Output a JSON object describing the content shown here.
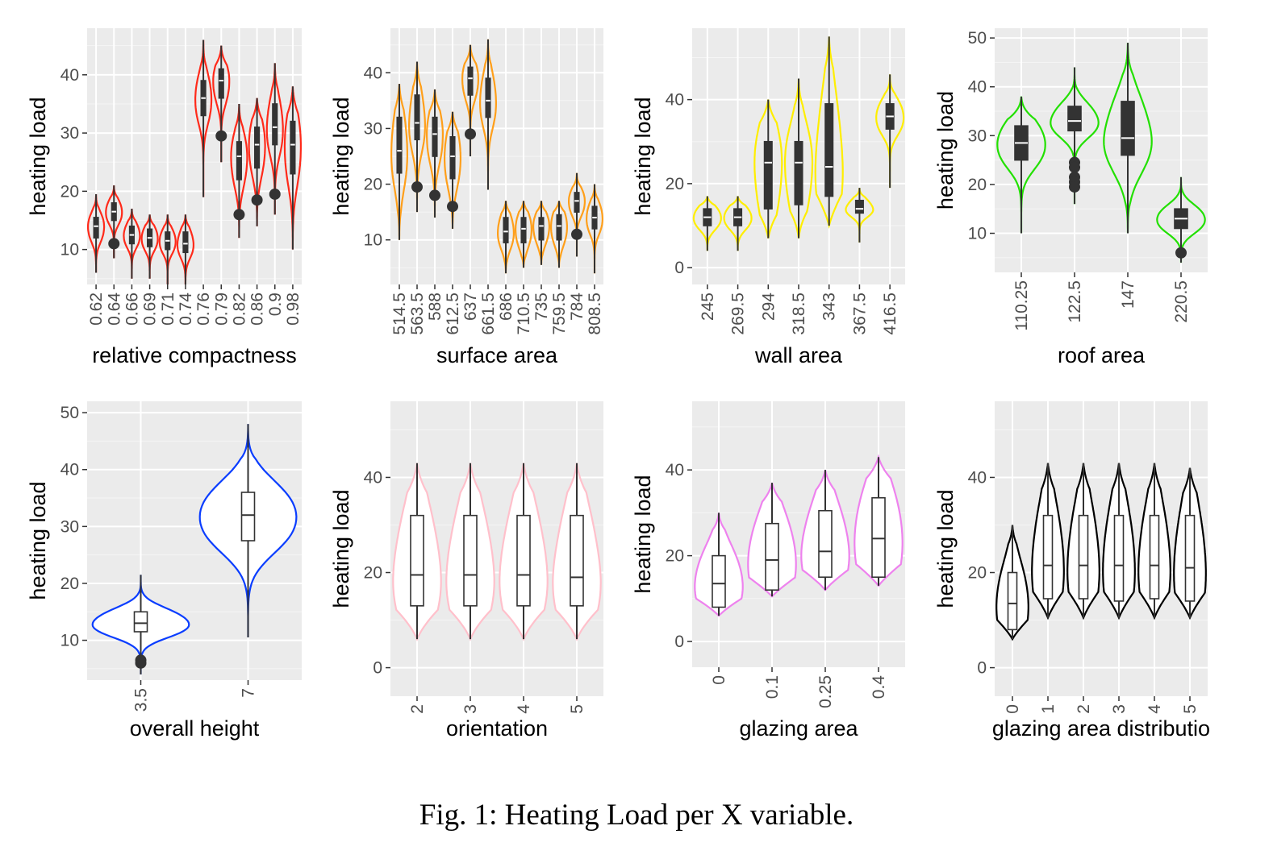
{
  "caption": "Fig. 1: Heating Load per X variable.",
  "chart_data": [
    {
      "type": "violin",
      "xlabel": "relative compactness",
      "ylabel": "heating load",
      "color": "#ff2a1a",
      "yticks": [
        10,
        20,
        30,
        40
      ],
      "ylim": [
        4,
        48
      ],
      "categories": [
        "0.62",
        "0.64",
        "0.66",
        "0.69",
        "0.71",
        "0.74",
        "0.76",
        "0.79",
        "0.82",
        "0.86",
        "0.9",
        "0.98"
      ],
      "groups": [
        {
          "min": 6,
          "q1": 12,
          "median": 14,
          "q3": 15.5,
          "max": 19.5,
          "outliers": []
        },
        {
          "min": 8.5,
          "q1": 15,
          "median": 16.5,
          "q3": 18,
          "max": 21,
          "outliers": [
            11
          ]
        },
        {
          "min": 5,
          "q1": 11,
          "median": 12.5,
          "q3": 14,
          "max": 17,
          "outliers": []
        },
        {
          "min": 5,
          "q1": 10.5,
          "median": 12,
          "q3": 13.5,
          "max": 16,
          "outliers": []
        },
        {
          "min": 4,
          "q1": 10,
          "median": 11.5,
          "q3": 13,
          "max": 16,
          "outliers": []
        },
        {
          "min": 3.5,
          "q1": 9.5,
          "median": 11,
          "q3": 13,
          "max": 16,
          "outliers": []
        },
        {
          "min": 19,
          "q1": 33,
          "median": 36,
          "q3": 39,
          "max": 46,
          "outliers": []
        },
        {
          "min": 25,
          "q1": 36,
          "median": 39,
          "q3": 41,
          "max": 45,
          "outliers": [
            29.5
          ]
        },
        {
          "min": 12,
          "q1": 22,
          "median": 26,
          "q3": 28.5,
          "max": 35,
          "outliers": [
            16
          ]
        },
        {
          "min": 14,
          "q1": 24,
          "median": 28,
          "q3": 31,
          "max": 36,
          "outliers": [
            18.5
          ]
        },
        {
          "min": 16,
          "q1": 28,
          "median": 31,
          "q3": 35,
          "max": 42,
          "outliers": [
            19.5
          ]
        },
        {
          "min": 10,
          "q1": 23,
          "median": 28,
          "q3": 32,
          "max": 38,
          "outliers": []
        }
      ]
    },
    {
      "type": "violin",
      "xlabel": "surface area",
      "ylabel": "heating load",
      "color": "#ff9f1a",
      "yticks": [
        10,
        20,
        30,
        40
      ],
      "ylim": [
        2,
        48
      ],
      "categories": [
        "514.5",
        "563.5",
        "588",
        "612.5",
        "637",
        "661.5",
        "686",
        "710.5",
        "735",
        "759.5",
        "784",
        "808.5"
      ],
      "groups": [
        {
          "min": 10,
          "q1": 22,
          "median": 26,
          "q3": 32,
          "max": 38,
          "outliers": []
        },
        {
          "min": 15,
          "q1": 28,
          "median": 31,
          "q3": 36,
          "max": 42,
          "outliers": [
            19.5
          ]
        },
        {
          "min": 14,
          "q1": 25,
          "median": 29,
          "q3": 32,
          "max": 37,
          "outliers": [
            18
          ]
        },
        {
          "min": 12,
          "q1": 21,
          "median": 25,
          "q3": 28.5,
          "max": 33,
          "outliers": [
            16
          ]
        },
        {
          "min": 25,
          "q1": 36,
          "median": 39,
          "q3": 41,
          "max": 45,
          "outliers": [
            29
          ]
        },
        {
          "min": 19,
          "q1": 32,
          "median": 35,
          "q3": 39,
          "max": 46,
          "outliers": []
        },
        {
          "min": 4,
          "q1": 9.5,
          "median": 11.5,
          "q3": 14,
          "max": 17,
          "outliers": []
        },
        {
          "min": 5,
          "q1": 9.5,
          "median": 12,
          "q3": 14,
          "max": 17,
          "outliers": []
        },
        {
          "min": 5.5,
          "q1": 10,
          "median": 12.5,
          "q3": 14,
          "max": 17,
          "outliers": []
        },
        {
          "min": 5,
          "q1": 10,
          "median": 12.5,
          "q3": 14.5,
          "max": 17,
          "outliers": []
        },
        {
          "min": 7,
          "q1": 15,
          "median": 17,
          "q3": 18.5,
          "max": 22,
          "outliers": [
            11
          ]
        },
        {
          "min": 4,
          "q1": 12,
          "median": 14,
          "q3": 16,
          "max": 20,
          "outliers": []
        }
      ]
    },
    {
      "type": "violin",
      "xlabel": "wall area",
      "ylabel": "heating load",
      "color": "#ffee00",
      "yticks": [
        0,
        20,
        40
      ],
      "ylim": [
        -4,
        57
      ],
      "categories": [
        "245",
        "269.5",
        "294",
        "318.5",
        "343",
        "367.5",
        "416.5"
      ],
      "groups": [
        {
          "min": 4,
          "q1": 10,
          "median": 12,
          "q3": 14,
          "max": 17,
          "outliers": []
        },
        {
          "min": 4,
          "q1": 10,
          "median": 12,
          "q3": 14,
          "max": 17,
          "outliers": []
        },
        {
          "min": 7,
          "q1": 14,
          "median": 25,
          "q3": 30,
          "max": 40,
          "outliers": []
        },
        {
          "min": 7,
          "q1": 15,
          "median": 25,
          "q3": 30,
          "max": 45,
          "outliers": []
        },
        {
          "min": 10,
          "q1": 17,
          "median": 24,
          "q3": 39,
          "max": 55,
          "outliers": []
        },
        {
          "min": 6,
          "q1": 13,
          "median": 14,
          "q3": 16,
          "max": 19,
          "outliers": []
        },
        {
          "min": 19,
          "q1": 33,
          "median": 36,
          "q3": 39,
          "max": 46,
          "outliers": []
        }
      ]
    },
    {
      "type": "violin",
      "xlabel": "roof area",
      "ylabel": "heating load",
      "color": "#22e000",
      "yticks": [
        10,
        20,
        30,
        40,
        50
      ],
      "ylim": [
        2,
        52
      ],
      "categories": [
        "110.25",
        "122.5",
        "147",
        "220.5"
      ],
      "groups": [
        {
          "min": 10,
          "q1": 25,
          "median": 28.5,
          "q3": 32,
          "max": 38,
          "outliers": []
        },
        {
          "min": 16,
          "q1": 31,
          "median": 33,
          "q3": 36,
          "max": 44,
          "outliers": [
            24.5,
            23.5,
            21.5,
            20.5,
            19.5
          ]
        },
        {
          "min": 10,
          "q1": 26,
          "median": 29.5,
          "q3": 37,
          "max": 49,
          "outliers": []
        },
        {
          "min": 4,
          "q1": 11,
          "median": 13,
          "q3": 15,
          "max": 21.5,
          "outliers": [
            6
          ]
        }
      ]
    },
    {
      "type": "violin",
      "xlabel": "overall height",
      "ylabel": "heating load",
      "color": "#0a3dff",
      "yticks": [
        10,
        20,
        30,
        40,
        50
      ],
      "ylim": [
        3,
        52
      ],
      "categories": [
        "3.5",
        "7"
      ],
      "groups": [
        {
          "min": 4,
          "q1": 11.5,
          "median": 13,
          "q3": 15,
          "max": 21.5,
          "outliers": [
            6.5,
            6
          ]
        },
        {
          "min": 10.5,
          "q1": 27.5,
          "median": 32,
          "q3": 36,
          "max": 48,
          "outliers": []
        }
      ]
    },
    {
      "type": "violin",
      "xlabel": "orientation",
      "ylabel": "heating load",
      "color": "#ffc0cb",
      "yticks": [
        0,
        20,
        40
      ],
      "ylim": [
        -6,
        56
      ],
      "categories": [
        "2",
        "3",
        "4",
        "5"
      ],
      "groups": [
        {
          "min": 6,
          "q1": 13,
          "median": 19.5,
          "q3": 32,
          "max": 43,
          "outliers": []
        },
        {
          "min": 6,
          "q1": 13,
          "median": 19.5,
          "q3": 32,
          "max": 43,
          "outliers": []
        },
        {
          "min": 6,
          "q1": 13,
          "median": 19.5,
          "q3": 32,
          "max": 43,
          "outliers": []
        },
        {
          "min": 6,
          "q1": 13,
          "median": 19,
          "q3": 32,
          "max": 43,
          "outliers": []
        }
      ]
    },
    {
      "type": "violin",
      "xlabel": "glazing area",
      "ylabel": "heating load",
      "color": "#ee82ee",
      "yticks": [
        0,
        20,
        40
      ],
      "ylim": [
        -6,
        56
      ],
      "categories": [
        "0",
        "0.1",
        "0.25",
        "0.4"
      ],
      "groups": [
        {
          "min": 6,
          "q1": 8,
          "median": 13.5,
          "q3": 20,
          "max": 30,
          "outliers": []
        },
        {
          "min": 10.5,
          "q1": 12,
          "median": 19,
          "q3": 27.5,
          "max": 37,
          "outliers": []
        },
        {
          "min": 12,
          "q1": 15,
          "median": 21,
          "q3": 30.5,
          "max": 40,
          "outliers": []
        },
        {
          "min": 13,
          "q1": 15,
          "median": 24,
          "q3": 33.5,
          "max": 43,
          "outliers": []
        }
      ]
    },
    {
      "type": "violin",
      "xlabel": "glazing area distributio",
      "ylabel": "heating load",
      "color": "#000000",
      "yticks": [
        0,
        20,
        40
      ],
      "ylim": [
        -6,
        56
      ],
      "categories": [
        "0",
        "1",
        "2",
        "3",
        "4",
        "5"
      ],
      "groups": [
        {
          "min": 6,
          "q1": 8,
          "median": 13.5,
          "q3": 20,
          "max": 30,
          "outliers": []
        },
        {
          "min": 10.5,
          "q1": 14.5,
          "median": 21.5,
          "q3": 32,
          "max": 43,
          "outliers": []
        },
        {
          "min": 10.5,
          "q1": 14.5,
          "median": 21.5,
          "q3": 32,
          "max": 43,
          "outliers": []
        },
        {
          "min": 10.5,
          "q1": 14,
          "median": 21.5,
          "q3": 32,
          "max": 43,
          "outliers": []
        },
        {
          "min": 10.5,
          "q1": 14.5,
          "median": 21.5,
          "q3": 32,
          "max": 43,
          "outliers": []
        },
        {
          "min": 10.5,
          "q1": 14,
          "median": 21,
          "q3": 32,
          "max": 42,
          "outliers": []
        }
      ]
    }
  ]
}
